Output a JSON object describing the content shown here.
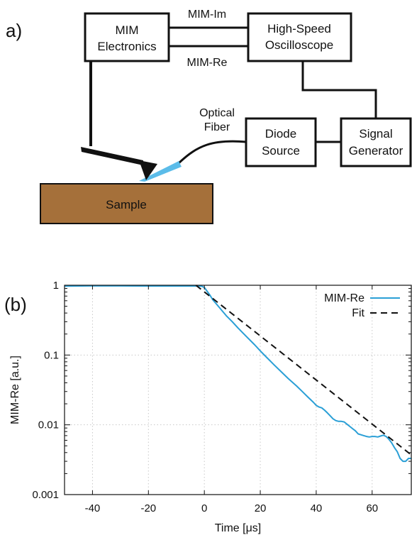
{
  "diagram": {
    "panel_label": "a)",
    "boxes": {
      "mim_electronics": [
        "MIM",
        "Electronics"
      ],
      "oscilloscope": [
        "High-Speed",
        "Oscilloscope"
      ],
      "diode_source": [
        "Diode",
        "Source"
      ],
      "signal_generator": [
        "Signal",
        "Generator"
      ],
      "sample": "Sample"
    },
    "wire_labels": {
      "mim_im": "MIM-Im",
      "mim_re": "MIM-Re",
      "optical_fiber": [
        "Optical",
        "Fiber"
      ]
    },
    "colors": {
      "sample_fill": "#a5703a",
      "light_beam": "#5bbce9",
      "line": "#111111"
    }
  },
  "chart_data": {
    "type": "line",
    "panel_label": "(b)",
    "xlabel": "Time [μs]",
    "ylabel": "MIM-Re [a.u.]",
    "xlim": [
      -50,
      74
    ],
    "ylim": [
      0.001,
      1
    ],
    "yscale": "log",
    "grid": true,
    "xticks": [
      -40,
      -20,
      0,
      20,
      40,
      60
    ],
    "yticks": [
      1,
      0.1,
      0.01,
      0.001
    ],
    "ytick_labels": [
      "1",
      "0.1",
      "0.01",
      "0.001"
    ],
    "legend_position": "top-right",
    "series": [
      {
        "name": "MIM-Re",
        "style": "solid",
        "color": "#2a9fd6",
        "x": [
          -50,
          -40,
          -30,
          -20,
          -10,
          -3,
          -1,
          0,
          1,
          2,
          3,
          5,
          8,
          10,
          12,
          15,
          18,
          20,
          22,
          25,
          28,
          30,
          33,
          35,
          37,
          39,
          40,
          41,
          42,
          43,
          44,
          45,
          46,
          47,
          48,
          49,
          50,
          51,
          52,
          53,
          54,
          55,
          56,
          57,
          58,
          59,
          60,
          61,
          62,
          63,
          64,
          65,
          66,
          67,
          68,
          69,
          70,
          71,
          72,
          73,
          74
        ],
        "y": [
          0.97,
          0.98,
          0.98,
          0.975,
          0.975,
          0.975,
          0.97,
          0.93,
          0.82,
          0.72,
          0.62,
          0.5,
          0.36,
          0.3,
          0.245,
          0.185,
          0.14,
          0.115,
          0.095,
          0.072,
          0.055,
          0.046,
          0.036,
          0.03,
          0.025,
          0.021,
          0.019,
          0.018,
          0.0175,
          0.0162,
          0.0148,
          0.0135,
          0.0122,
          0.0115,
          0.0112,
          0.0112,
          0.011,
          0.0102,
          0.0095,
          0.0088,
          0.0082,
          0.0074,
          0.0072,
          0.007,
          0.0068,
          0.0067,
          0.0068,
          0.0068,
          0.0067,
          0.0069,
          0.0071,
          0.0068,
          0.0062,
          0.0055,
          0.0047,
          0.0041,
          0.0033,
          0.003,
          0.003,
          0.0033,
          0.0033
        ]
      },
      {
        "name": "Fit",
        "style": "dashed",
        "color": "#111111",
        "x": [
          -3,
          74
        ],
        "y": [
          1.0,
          0.0037
        ]
      }
    ]
  }
}
